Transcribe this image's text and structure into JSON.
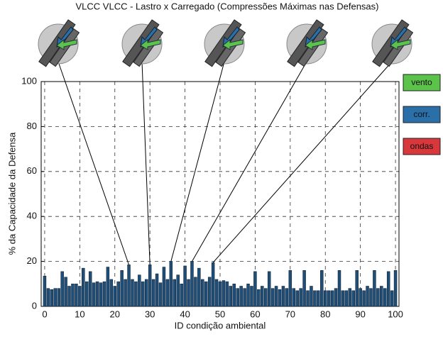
{
  "chart_data": {
    "type": "bar",
    "title": "VLCC VLCC - Lastro x Carregado (Compressões Máximas nas Defensas)",
    "xlabel": "ID condição ambiental",
    "ylabel": "% da Capacidade da Defensa",
    "x": [
      0,
      1,
      2,
      3,
      4,
      5,
      6,
      7,
      8,
      9,
      10,
      11,
      12,
      13,
      14,
      15,
      16,
      17,
      18,
      19,
      20,
      21,
      22,
      23,
      24,
      25,
      26,
      27,
      28,
      29,
      30,
      31,
      32,
      33,
      34,
      35,
      36,
      37,
      38,
      39,
      40,
      41,
      42,
      43,
      44,
      45,
      46,
      47,
      48,
      49,
      50,
      51,
      52,
      53,
      54,
      55,
      56,
      57,
      58,
      59,
      60,
      61,
      62,
      63,
      64,
      65,
      66,
      67,
      68,
      69,
      70,
      71,
      72,
      73,
      74,
      75,
      76,
      77,
      78,
      79,
      80,
      81,
      82,
      83,
      84,
      85,
      86,
      87,
      88,
      89,
      90,
      91,
      92,
      93,
      94,
      95,
      96,
      97,
      98,
      99,
      100
    ],
    "values": [
      13.5,
      8,
      7.5,
      8,
      8,
      15.5,
      13,
      9,
      10,
      10,
      9,
      17,
      11,
      15.5,
      10.5,
      11,
      10.5,
      11,
      17.5,
      12,
      9,
      11,
      16,
      12,
      18.5,
      12,
      11,
      14,
      11,
      12,
      18.5,
      12,
      14.5,
      10.5,
      17.5,
      12,
      20,
      12,
      14,
      10,
      18,
      12,
      20,
      13,
      17,
      12,
      11,
      13,
      19.5,
      12,
      11,
      11.5,
      11,
      9,
      10,
      8,
      9,
      8,
      10,
      9,
      15.5,
      7.5,
      9,
      8,
      15.5,
      8,
      9,
      7.5,
      9,
      8,
      16,
      8,
      7,
      8,
      16,
      7,
      9,
      7,
      7,
      16,
      7,
      7,
      7,
      8,
      16,
      7,
      7,
      8,
      7,
      16,
      8,
      7,
      9,
      8,
      16,
      8,
      9,
      8,
      15.5,
      7,
      16
    ],
    "color": "#1f4e79",
    "xlim": [
      -1,
      101
    ],
    "ylim": [
      0,
      100
    ],
    "xticks": [
      0,
      10,
      20,
      30,
      40,
      50,
      60,
      70,
      80,
      90,
      100
    ],
    "yticks": [
      0,
      20,
      40,
      60,
      80,
      100
    ],
    "grid": true,
    "highlighted_x": [
      24,
      30,
      36,
      42,
      48
    ],
    "legend": [
      {
        "label": "vento",
        "color": "#5bc24a"
      },
      {
        "label": "corr.",
        "color": "#2a6fa8"
      },
      {
        "label": "ondas",
        "color": "#d8383c"
      }
    ]
  }
}
